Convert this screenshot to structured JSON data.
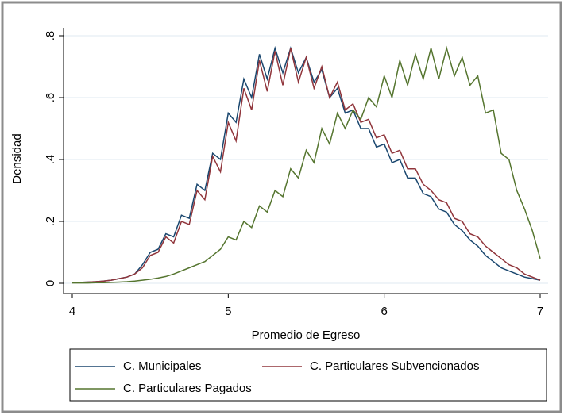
{
  "chart_data": {
    "type": "line",
    "ylabel": "Densidad",
    "xlabel": "Promedio de Egreso",
    "x": [
      4.0,
      4.05,
      4.1,
      4.15,
      4.2,
      4.25,
      4.3,
      4.35,
      4.4,
      4.45,
      4.5,
      4.55,
      4.6,
      4.65,
      4.7,
      4.75,
      4.8,
      4.85,
      4.9,
      4.95,
      5.0,
      5.05,
      5.1,
      5.15,
      5.2,
      5.25,
      5.3,
      5.35,
      5.4,
      5.45,
      5.5,
      5.55,
      5.6,
      5.65,
      5.7,
      5.75,
      5.8,
      5.85,
      5.9,
      5.95,
      6.0,
      6.05,
      6.1,
      6.15,
      6.2,
      6.25,
      6.3,
      6.35,
      6.4,
      6.45,
      6.5,
      6.55,
      6.6,
      6.65,
      6.7,
      6.75,
      6.8,
      6.85,
      6.9,
      6.95,
      7.0
    ],
    "series": [
      {
        "name": "C. Municipales",
        "color": "#1a476f",
        "values": [
          0.003,
          0.003,
          0.004,
          0.005,
          0.007,
          0.01,
          0.015,
          0.02,
          0.03,
          0.06,
          0.1,
          0.11,
          0.16,
          0.15,
          0.22,
          0.21,
          0.32,
          0.3,
          0.42,
          0.4,
          0.55,
          0.52,
          0.66,
          0.6,
          0.74,
          0.66,
          0.76,
          0.68,
          0.76,
          0.68,
          0.73,
          0.65,
          0.69,
          0.6,
          0.63,
          0.55,
          0.56,
          0.5,
          0.5,
          0.44,
          0.45,
          0.39,
          0.4,
          0.34,
          0.34,
          0.29,
          0.28,
          0.24,
          0.23,
          0.19,
          0.17,
          0.14,
          0.12,
          0.09,
          0.07,
          0.05,
          0.04,
          0.03,
          0.02,
          0.015,
          0.01
        ]
      },
      {
        "name": "C. Particulares Subvencionados",
        "color": "#90353b",
        "values": [
          0.003,
          0.003,
          0.004,
          0.005,
          0.007,
          0.01,
          0.015,
          0.02,
          0.03,
          0.05,
          0.09,
          0.1,
          0.15,
          0.13,
          0.2,
          0.19,
          0.3,
          0.27,
          0.41,
          0.36,
          0.52,
          0.46,
          0.63,
          0.56,
          0.72,
          0.62,
          0.75,
          0.64,
          0.76,
          0.65,
          0.73,
          0.63,
          0.7,
          0.6,
          0.65,
          0.56,
          0.58,
          0.52,
          0.53,
          0.47,
          0.48,
          0.42,
          0.43,
          0.37,
          0.37,
          0.32,
          0.3,
          0.27,
          0.26,
          0.21,
          0.2,
          0.16,
          0.15,
          0.12,
          0.1,
          0.08,
          0.06,
          0.05,
          0.03,
          0.02,
          0.01
        ]
      },
      {
        "name": "C. Particulares Pagados",
        "color": "#55752f",
        "values": [
          0.001,
          0.001,
          0.001,
          0.002,
          0.002,
          0.003,
          0.004,
          0.005,
          0.007,
          0.01,
          0.013,
          0.017,
          0.022,
          0.03,
          0.04,
          0.05,
          0.06,
          0.07,
          0.09,
          0.11,
          0.15,
          0.14,
          0.2,
          0.18,
          0.25,
          0.23,
          0.3,
          0.28,
          0.37,
          0.34,
          0.43,
          0.39,
          0.5,
          0.45,
          0.55,
          0.5,
          0.56,
          0.53,
          0.6,
          0.57,
          0.67,
          0.6,
          0.72,
          0.64,
          0.74,
          0.66,
          0.76,
          0.66,
          0.76,
          0.67,
          0.73,
          0.64,
          0.67,
          0.55,
          0.56,
          0.42,
          0.4,
          0.3,
          0.24,
          0.17,
          0.08
        ]
      }
    ],
    "xlim": [
      4,
      7
    ],
    "xticks": [
      4,
      5,
      6,
      7
    ],
    "ylim": [
      0,
      0.8
    ],
    "yticks": [
      0,
      {
        "value": 0.2,
        "label": ".2"
      },
      {
        "value": 0.4,
        "label": ".4"
      },
      {
        "value": 0.6,
        "label": ".6"
      },
      {
        "value": 0.8,
        "label": ".8"
      }
    ],
    "grid": true
  }
}
